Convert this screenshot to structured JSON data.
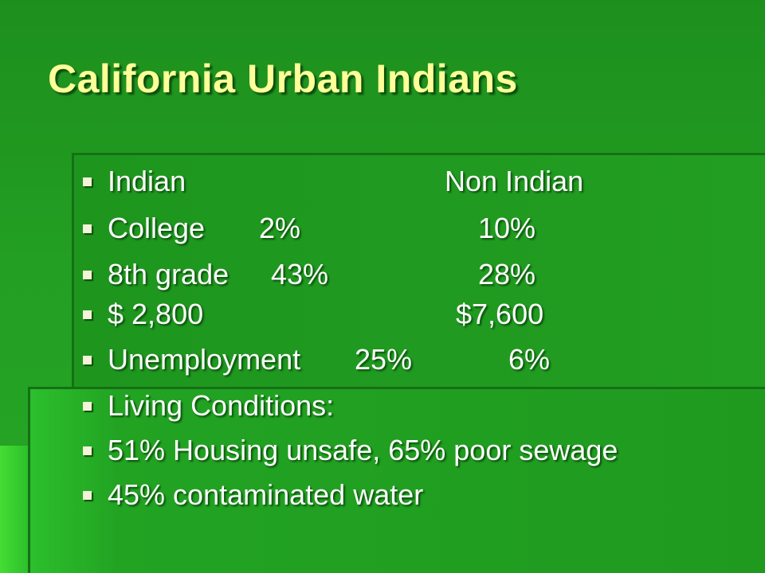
{
  "title": "California Urban Indians",
  "bullets": [
    [
      "Indian",
      "Non Indian"
    ],
    [
      "College",
      "2%",
      "10%"
    ],
    [
      "8th grade",
      "43%",
      "28%"
    ],
    [
      "$ 2,800",
      "$7,600"
    ],
    [
      "Unemployment",
      "25%",
      "6%"
    ],
    [
      "Living Conditions:"
    ],
    [
      "51% Housing unsafe, 65% poor sewage"
    ],
    [
      "45% contaminated water"
    ]
  ]
}
